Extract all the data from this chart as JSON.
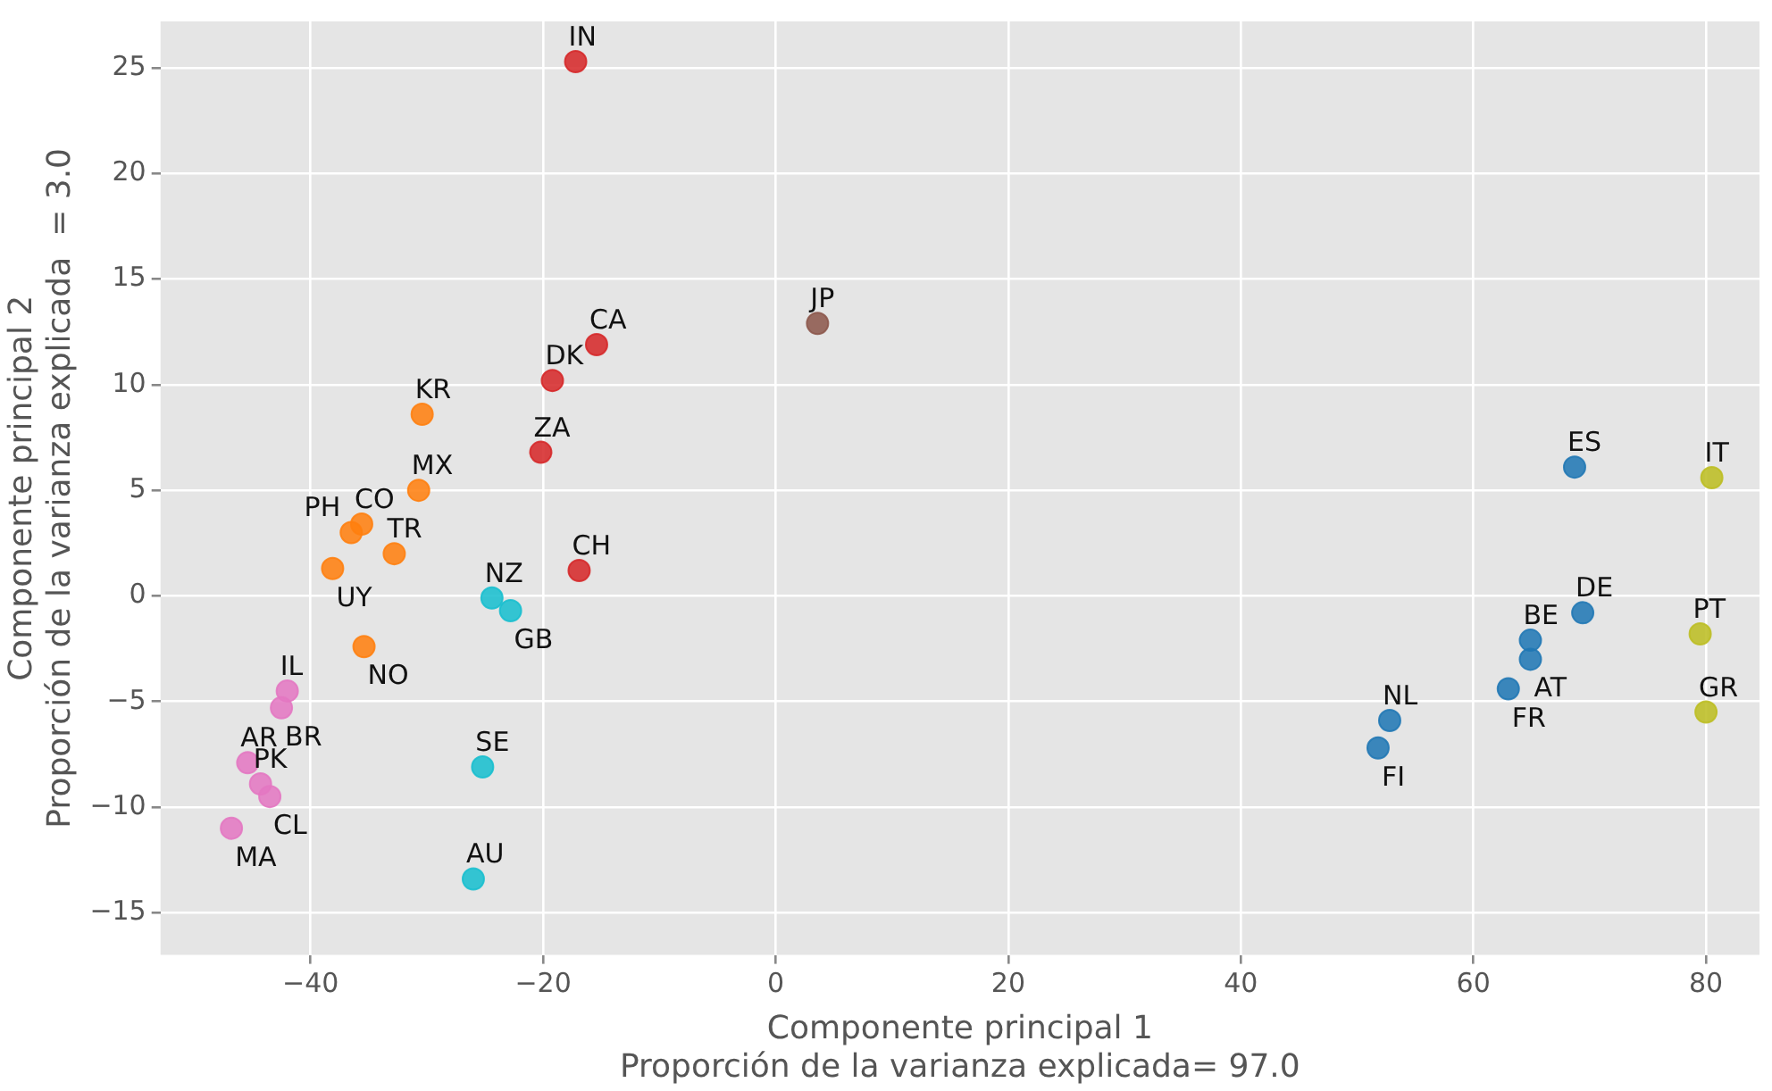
{
  "chart_data": {
    "type": "scatter",
    "xlabel": "Componente principal 1\nProporción de la varianza explicada= 97.0",
    "ylabel": "Componente principal 2\nProporción de la varianza explicada  = 3.0",
    "xlim": [
      -52.9,
      84.6
    ],
    "ylim": [
      -17,
      27.2
    ],
    "xticks": [
      -40,
      -20,
      0,
      20,
      40,
      60,
      80
    ],
    "yticks": [
      -15,
      -10,
      -5,
      0,
      5,
      10,
      15,
      20,
      25
    ],
    "grid": true,
    "legend": false,
    "marker": "circle",
    "series": [
      {
        "color": "#d62728",
        "x": [
          -17.2,
          -15.4,
          -19.2,
          -20.2,
          -16.9
        ],
        "values": [
          25.3,
          11.9,
          10.2,
          6.8,
          1.2
        ],
        "value_labels": [
          "IN",
          "CA",
          "DK",
          "ZA",
          "CH"
        ]
      },
      {
        "color": "#8c564b",
        "x": [
          3.6
        ],
        "values": [
          12.9
        ],
        "value_labels": [
          "JP"
        ]
      },
      {
        "color": "#ff7f0e",
        "x": [
          -30.4,
          -30.7,
          -35.6,
          -36.5,
          -32.8,
          -38.1,
          -35.4
        ],
        "values": [
          8.6,
          5.0,
          3.4,
          3.0,
          2.0,
          1.3,
          -2.4
        ],
        "value_labels": [
          "KR",
          "MX",
          "CO",
          "PH",
          "TR",
          "UY",
          "NO"
        ]
      },
      {
        "color": "#17becf",
        "x": [
          -24.4,
          -22.8,
          -25.2,
          -26.0
        ],
        "values": [
          -0.1,
          -0.7,
          -8.1,
          -13.4
        ],
        "value_labels": [
          "NZ",
          "GB",
          "SE",
          "AU"
        ]
      },
      {
        "color": "#e377c2",
        "x": [
          -42.0,
          -42.5,
          -45.4,
          -44.3,
          -43.5,
          -46.8
        ],
        "values": [
          -4.5,
          -5.3,
          -7.9,
          -8.9,
          -9.5,
          -11.0
        ],
        "value_labels": [
          "IL",
          "BR",
          "AR",
          "PK",
          "CL",
          "MA"
        ]
      },
      {
        "color": "#1f77b4",
        "x": [
          68.7,
          69.4,
          64.9,
          64.9,
          63.0,
          52.8,
          51.8
        ],
        "values": [
          6.1,
          -0.8,
          -2.1,
          -3.0,
          -4.4,
          -5.9,
          -7.2
        ],
        "value_labels": [
          "ES",
          "DE",
          "BE",
          "AT",
          "FR",
          "NL",
          "FI"
        ]
      },
      {
        "color": "#bcbd22",
        "x": [
          80.5,
          79.5,
          80.0
        ],
        "values": [
          5.6,
          -1.8,
          -5.5
        ],
        "value_labels": [
          "IT",
          "PT",
          "GR"
        ]
      }
    ]
  }
}
